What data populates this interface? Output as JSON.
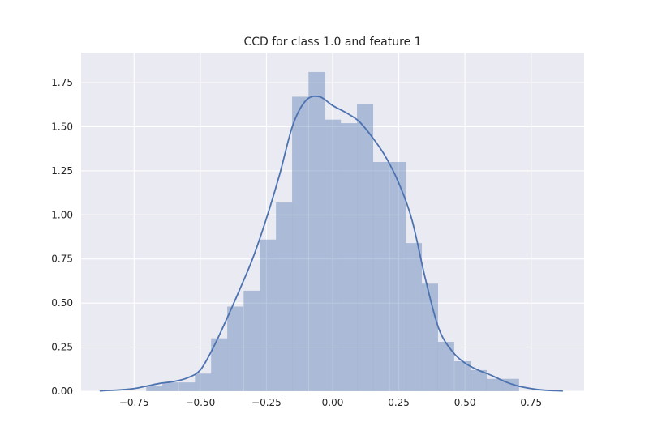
{
  "chart_data": {
    "type": "bar",
    "title": "CCD for class 1.0 and feature 1",
    "xlabel": "",
    "ylabel": "",
    "xlim": [
      -0.95,
      0.95
    ],
    "ylim": [
      0,
      1.92
    ],
    "grid": true,
    "xticks": [
      {
        "value": -0.75,
        "label": "−0.75"
      },
      {
        "value": -0.5,
        "label": "−0.50"
      },
      {
        "value": -0.25,
        "label": "−0.25"
      },
      {
        "value": 0.0,
        "label": "0.00"
      },
      {
        "value": 0.25,
        "label": "0.25"
      },
      {
        "value": 0.5,
        "label": "0.50"
      },
      {
        "value": 0.75,
        "label": "0.75"
      }
    ],
    "yticks": [
      {
        "value": 0.0,
        "label": "0.00"
      },
      {
        "value": 0.25,
        "label": "0.25"
      },
      {
        "value": 0.5,
        "label": "0.50"
      },
      {
        "value": 0.75,
        "label": "0.75"
      },
      {
        "value": 1.0,
        "label": "1.00"
      },
      {
        "value": 1.25,
        "label": "1.25"
      },
      {
        "value": 1.5,
        "label": "1.50"
      },
      {
        "value": 1.75,
        "label": "1.75"
      }
    ],
    "histogram": {
      "bin_width": 0.0613,
      "bins": [
        {
          "x0": -0.704,
          "value": 0.03
        },
        {
          "x0": -0.643,
          "value": 0.05
        },
        {
          "x0": -0.581,
          "value": 0.05
        },
        {
          "x0": -0.52,
          "value": 0.1
        },
        {
          "x0": -0.459,
          "value": 0.3
        },
        {
          "x0": -0.398,
          "value": 0.48
        },
        {
          "x0": -0.336,
          "value": 0.57
        },
        {
          "x0": -0.275,
          "value": 0.86
        },
        {
          "x0": -0.214,
          "value": 1.07
        },
        {
          "x0": -0.153,
          "value": 1.67
        },
        {
          "x0": -0.091,
          "value": 1.81
        },
        {
          "x0": -0.03,
          "value": 1.54
        },
        {
          "x0": 0.031,
          "value": 1.52
        },
        {
          "x0": 0.092,
          "value": 1.63
        },
        {
          "x0": 0.153,
          "value": 1.3
        },
        {
          "x0": 0.215,
          "value": 1.3
        },
        {
          "x0": 0.276,
          "value": 0.84
        },
        {
          "x0": 0.337,
          "value": 0.61
        },
        {
          "x0": 0.398,
          "value": 0.28
        },
        {
          "x0": 0.46,
          "value": 0.17
        },
        {
          "x0": 0.521,
          "value": 0.12
        },
        {
          "x0": 0.582,
          "value": 0.07
        },
        {
          "x0": 0.643,
          "value": 0.07
        }
      ]
    },
    "kde": {
      "x": [
        -0.88,
        -0.8,
        -0.75,
        -0.7,
        -0.65,
        -0.6,
        -0.55,
        -0.5,
        -0.45,
        -0.4,
        -0.35,
        -0.3,
        -0.25,
        -0.2,
        -0.15,
        -0.1,
        -0.05,
        0.0,
        0.05,
        0.1,
        0.15,
        0.2,
        0.25,
        0.3,
        0.35,
        0.4,
        0.45,
        0.5,
        0.55,
        0.6,
        0.65,
        0.7,
        0.75,
        0.8,
        0.87
      ],
      "y": [
        0.002,
        0.008,
        0.015,
        0.03,
        0.045,
        0.055,
        0.075,
        0.12,
        0.25,
        0.41,
        0.58,
        0.76,
        0.98,
        1.23,
        1.51,
        1.65,
        1.67,
        1.62,
        1.58,
        1.53,
        1.44,
        1.33,
        1.18,
        0.97,
        0.64,
        0.36,
        0.23,
        0.16,
        0.12,
        0.09,
        0.055,
        0.03,
        0.015,
        0.006,
        0.002
      ]
    },
    "colors": {
      "background": "#eaeaf2",
      "grid": "#ffffff",
      "bars": "#4c72b0",
      "bar_alpha": 0.4,
      "line": "#4c72b0",
      "text": "#262626"
    }
  }
}
